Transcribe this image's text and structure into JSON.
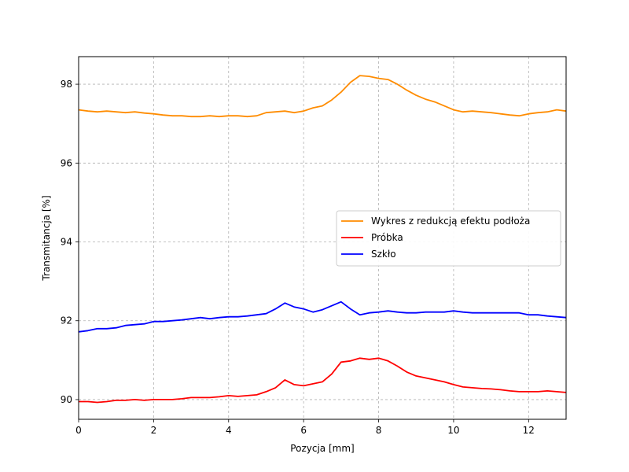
{
  "chart_data": {
    "type": "line",
    "title": "",
    "xlabel": "Pozycja [mm]",
    "ylabel": "Transmitancja [%]",
    "xlim": [
      0,
      13
    ],
    "ylim": [
      89.5,
      98.7
    ],
    "xticks": [
      0,
      2,
      4,
      6,
      8,
      10,
      12
    ],
    "xtick_labels": [
      "0",
      "2",
      "4",
      "6",
      "8",
      "10",
      "12"
    ],
    "yticks": [
      90,
      92,
      94,
      96,
      98
    ],
    "ytick_labels": [
      "90",
      "92",
      "94",
      "96",
      "98"
    ],
    "grid": true,
    "legend_position": "center-right",
    "series": [
      {
        "name": "Wykres z redukcją efektu podłoża",
        "color": "#ff8c00",
        "x": [
          0,
          0.25,
          0.5,
          0.75,
          1,
          1.25,
          1.5,
          1.75,
          2,
          2.25,
          2.5,
          2.75,
          3,
          3.25,
          3.5,
          3.75,
          4,
          4.25,
          4.5,
          4.75,
          5,
          5.25,
          5.5,
          5.75,
          6,
          6.25,
          6.5,
          6.75,
          7,
          7.25,
          7.5,
          7.75,
          8,
          8.25,
          8.5,
          8.75,
          9,
          9.25,
          9.5,
          9.75,
          10,
          10.25,
          10.5,
          10.75,
          11,
          11.25,
          11.5,
          11.75,
          12,
          12.25,
          12.5,
          12.75,
          13
        ],
        "y": [
          97.35,
          97.32,
          97.3,
          97.32,
          97.3,
          97.28,
          97.3,
          97.27,
          97.25,
          97.22,
          97.2,
          97.2,
          97.18,
          97.18,
          97.2,
          97.18,
          97.2,
          97.2,
          97.18,
          97.2,
          97.28,
          97.3,
          97.32,
          97.28,
          97.32,
          97.4,
          97.45,
          97.6,
          97.8,
          98.05,
          98.22,
          98.2,
          98.15,
          98.12,
          98.0,
          97.85,
          97.72,
          97.62,
          97.55,
          97.45,
          97.35,
          97.3,
          97.32,
          97.3,
          97.28,
          97.25,
          97.22,
          97.2,
          97.25,
          97.28,
          97.3,
          97.35,
          97.32
        ]
      },
      {
        "name": "Próbka",
        "color": "#ff0000",
        "x": [
          0,
          0.25,
          0.5,
          0.75,
          1,
          1.25,
          1.5,
          1.75,
          2,
          2.25,
          2.5,
          2.75,
          3,
          3.25,
          3.5,
          3.75,
          4,
          4.25,
          4.5,
          4.75,
          5,
          5.25,
          5.5,
          5.75,
          6,
          6.25,
          6.5,
          6.75,
          7,
          7.25,
          7.5,
          7.75,
          8,
          8.25,
          8.5,
          8.75,
          9,
          9.25,
          9.5,
          9.75,
          10,
          10.25,
          10.5,
          10.75,
          11,
          11.25,
          11.5,
          11.75,
          12,
          12.25,
          12.5,
          12.75,
          13
        ],
        "y": [
          89.95,
          89.95,
          89.93,
          89.95,
          89.98,
          89.98,
          90.0,
          89.98,
          90.0,
          90.0,
          90.0,
          90.02,
          90.05,
          90.05,
          90.05,
          90.07,
          90.1,
          90.08,
          90.1,
          90.12,
          90.2,
          90.3,
          90.5,
          90.38,
          90.35,
          90.4,
          90.45,
          90.65,
          90.95,
          90.98,
          91.05,
          91.02,
          91.05,
          90.98,
          90.85,
          90.7,
          90.6,
          90.55,
          90.5,
          90.45,
          90.38,
          90.32,
          90.3,
          90.28,
          90.27,
          90.25,
          90.22,
          90.2,
          90.2,
          90.2,
          90.22,
          90.2,
          90.18
        ]
      },
      {
        "name": "Szkło",
        "color": "#0000ff",
        "x": [
          0,
          0.25,
          0.5,
          0.75,
          1,
          1.25,
          1.5,
          1.75,
          2,
          2.25,
          2.5,
          2.75,
          3,
          3.25,
          3.5,
          3.75,
          4,
          4.25,
          4.5,
          4.75,
          5,
          5.25,
          5.5,
          5.75,
          6,
          6.25,
          6.5,
          6.75,
          7,
          7.25,
          7.5,
          7.75,
          8,
          8.25,
          8.5,
          8.75,
          9,
          9.25,
          9.5,
          9.75,
          10,
          10.25,
          10.5,
          10.75,
          11,
          11.25,
          11.5,
          11.75,
          12,
          12.25,
          12.5,
          12.75,
          13
        ],
        "y": [
          91.72,
          91.75,
          91.8,
          91.8,
          91.82,
          91.88,
          91.9,
          91.92,
          91.98,
          91.98,
          92.0,
          92.02,
          92.05,
          92.08,
          92.05,
          92.08,
          92.1,
          92.1,
          92.12,
          92.15,
          92.18,
          92.3,
          92.45,
          92.35,
          92.3,
          92.22,
          92.28,
          92.38,
          92.48,
          92.3,
          92.15,
          92.2,
          92.22,
          92.25,
          92.22,
          92.2,
          92.2,
          92.22,
          92.22,
          92.22,
          92.25,
          92.22,
          92.2,
          92.2,
          92.2,
          92.2,
          92.2,
          92.2,
          92.15,
          92.15,
          92.12,
          92.1,
          92.08
        ]
      }
    ]
  }
}
